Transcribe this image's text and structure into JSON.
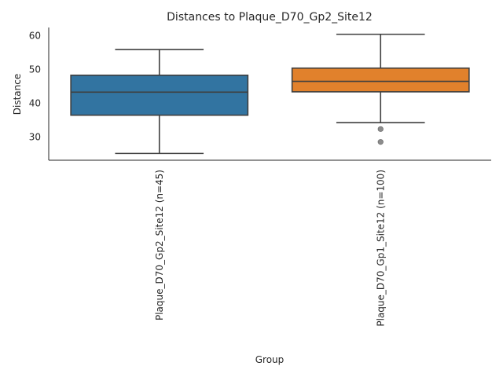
{
  "chart_data": {
    "type": "box",
    "title": "Distances to Plaque_D70_Gp2_Site12",
    "xlabel": "Group",
    "ylabel": "Distance",
    "ylim": [
      23.2,
      62.4
    ],
    "yticks": [
      30,
      40,
      50,
      60
    ],
    "grid": false,
    "categories": [
      "Plaque_D70_Gp2_Site12 (n=45)",
      "Plaque_D70_Gp1_Site12 (n=100)"
    ],
    "boxes": [
      {
        "category": "Plaque_D70_Gp2_Site12 (n=45)",
        "color": "#3274a1",
        "whisker_low": 25.2,
        "q1": 36.5,
        "median": 43.3,
        "q3": 48.3,
        "whisker_high": 55.9,
        "outliers": []
      },
      {
        "category": "Plaque_D70_Gp1_Site12 (n=100)",
        "color": "#e1812c",
        "whisker_low": 34.3,
        "q1": 43.4,
        "median": 46.5,
        "q3": 50.4,
        "whisker_high": 60.4,
        "outliers": [
          32.4,
          28.6
        ]
      }
    ]
  }
}
